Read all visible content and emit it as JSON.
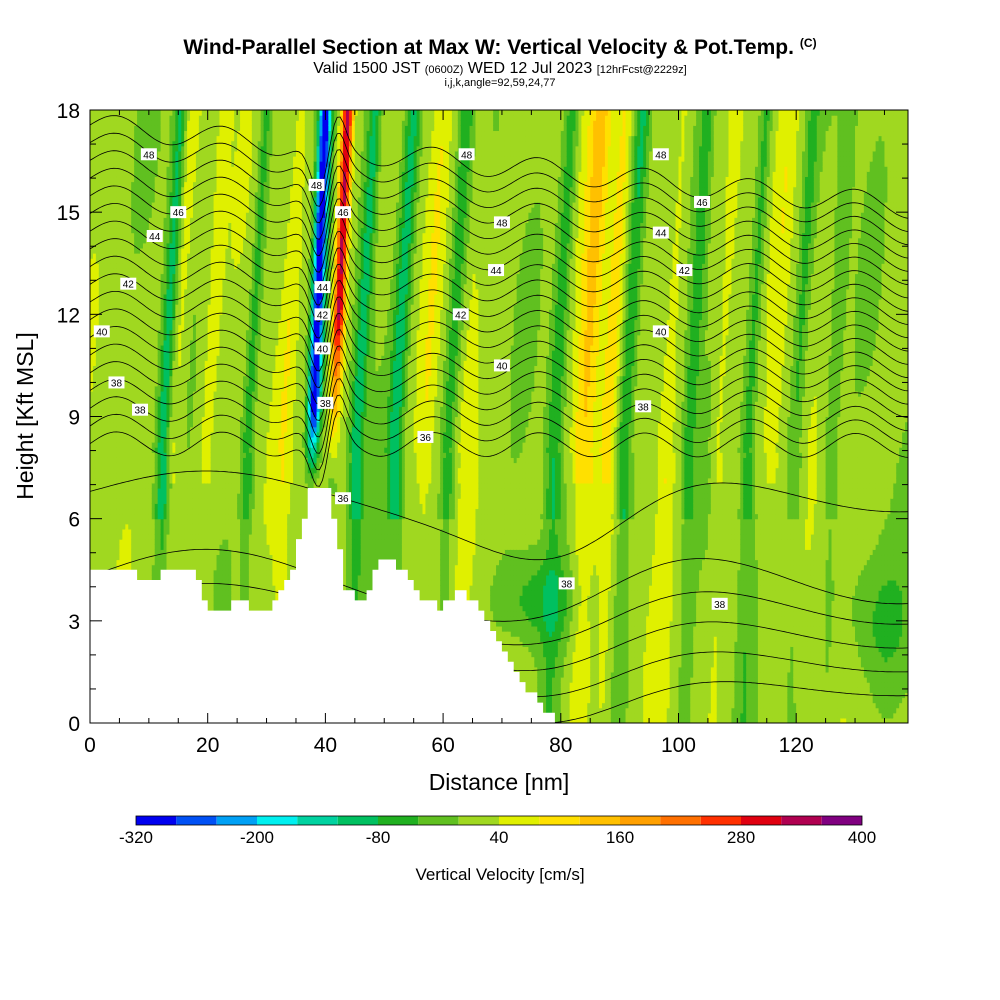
{
  "header": {
    "title": "Wind-Parallel Section at Max W: Vertical Velocity & Pot.Temp.",
    "copyright": "(C)",
    "valid_prefix": "Valid 1500 JST",
    "valid_utc": "(0600Z)",
    "valid_date": "WED 12 Jul 2023",
    "forecast": "[12hrFcst@2229z]",
    "indices": "i,j,k,angle=92,59,24,77"
  },
  "chart_data": {
    "type": "heatmap",
    "xlabel": "Distance [nm]",
    "ylabel": "Height [Kft MSL]",
    "xlim": [
      0,
      139
    ],
    "ylim": [
      0,
      18
    ],
    "x_ticks": [
      0,
      20,
      40,
      60,
      80,
      100,
      120
    ],
    "y_ticks": [
      0,
      3,
      6,
      9,
      12,
      15,
      18
    ],
    "grid": false,
    "colorbar": {
      "label": "Vertical Velocity [cm/s]",
      "tick_labels": [
        "-320",
        "-200",
        "-80",
        "40",
        "160",
        "280",
        "400"
      ],
      "tick_values": [
        -320,
        -200,
        -80,
        40,
        160,
        280,
        400
      ],
      "bin_edges": [
        -320,
        -280,
        -240,
        -200,
        -160,
        -120,
        -80,
        -40,
        0,
        40,
        80,
        120,
        160,
        200,
        240,
        280,
        320,
        360,
        400
      ],
      "colors": [
        "#0000f0",
        "#0050f5",
        "#00a0f5",
        "#00f0f0",
        "#00d2a0",
        "#00c060",
        "#20b020",
        "#60c020",
        "#a0d820",
        "#e0f000",
        "#ffe000",
        "#ffc000",
        "#ffa000",
        "#ff7000",
        "#ff3000",
        "#e00010",
        "#b00050",
        "#800080"
      ]
    },
    "theta_contour_labels": [
      {
        "value": "48",
        "x": 10,
        "y": 16.7
      },
      {
        "value": "46",
        "x": 15,
        "y": 15.0
      },
      {
        "value": "44",
        "x": 11,
        "y": 14.3
      },
      {
        "value": "42",
        "x": 6.5,
        "y": 12.9
      },
      {
        "value": "40",
        "x": 2,
        "y": 11.5
      },
      {
        "value": "38",
        "x": 4.5,
        "y": 10.0
      },
      {
        "value": "38",
        "x": 8.5,
        "y": 9.2
      },
      {
        "value": "48",
        "x": 38.5,
        "y": 15.8
      },
      {
        "value": "46",
        "x": 43,
        "y": 15.0
      },
      {
        "value": "44",
        "x": 39.5,
        "y": 12.8
      },
      {
        "value": "42",
        "x": 39.5,
        "y": 12.0
      },
      {
        "value": "40",
        "x": 39.5,
        "y": 11.0
      },
      {
        "value": "38",
        "x": 40,
        "y": 9.4
      },
      {
        "value": "36",
        "x": 43,
        "y": 6.6
      },
      {
        "value": "36",
        "x": 57,
        "y": 8.4
      },
      {
        "value": "48",
        "x": 64,
        "y": 16.7
      },
      {
        "value": "48",
        "x": 70,
        "y": 14.7
      },
      {
        "value": "44",
        "x": 69,
        "y": 13.3
      },
      {
        "value": "42",
        "x": 63,
        "y": 12.0
      },
      {
        "value": "40",
        "x": 70,
        "y": 10.5
      },
      {
        "value": "48",
        "x": 97,
        "y": 16.7
      },
      {
        "value": "46",
        "x": 104,
        "y": 15.3
      },
      {
        "value": "44",
        "x": 97,
        "y": 14.4
      },
      {
        "value": "42",
        "x": 101,
        "y": 13.3
      },
      {
        "value": "40",
        "x": 97,
        "y": 11.5
      },
      {
        "value": "38",
        "x": 94,
        "y": 9.3
      },
      {
        "value": "38",
        "x": 81,
        "y": 4.1
      },
      {
        "value": "38",
        "x": 107,
        "y": 3.5
      }
    ]
  }
}
